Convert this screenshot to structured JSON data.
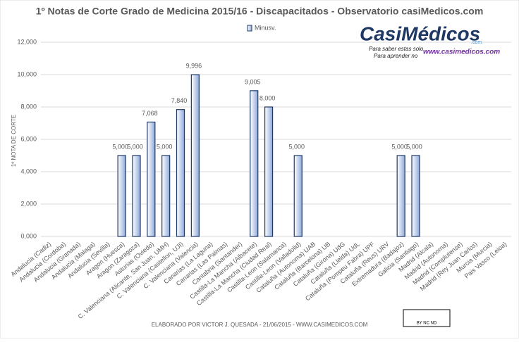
{
  "chart_data": {
    "type": "bar",
    "title": "1º Notas de Corte Grado de Medicina 2015/16 - Discapacitados - Observatorio casiMedicos.com",
    "ylabel": "1º NOTA DE CORTE",
    "footer": "ELABORADO POR VICTOR J. QUESADA - 21/06/2015 - WWW.CASIMEDICOS.COM",
    "categories": [
      "Andalucia (Cadiz)",
      "Andalucia (Cordoba)",
      "Andalucia (Granada)",
      "Andalucia (Malaga)",
      "Andalucia (Sevilla)",
      "Aragon (Huesca)",
      "Aragon (Zaragoza)",
      "Asturias (Oviedo)",
      "C. Valenciana (Alicante, San Juan, UMH)",
      "C. Valenciana (Castellon, UJI)",
      "C. Valenciana (Valencia)",
      "Canarias (La Laguna)",
      "Canarias (Las Palmas)",
      "Cantabria (Santander)",
      "Castilla-La Mancha (Albacete)",
      "Castilla-La Mancha (Ciudad Real)",
      "Castilla-Leon (Salamanca)",
      "Castilla-Leon (Valladolid)",
      "Cataluña (Autonoma) UAB",
      "Cataluña (Barcelona) UB",
      "Cataluña (Girona) UdG",
      "Cataluña (Lleida) UdL",
      "Cataluña (Pompeu Fabra) UPF",
      "Cataluña (Reus) URV",
      "Extremadura (Badajoz)",
      "Galicia (Santiago)",
      "Madrid (Alcala)",
      "Madrid (Autonoma)",
      "Madrid (Complutense)",
      "Madrid (Rey Juan Carlos)",
      "Murcia (Murcia)",
      "Pais Vasco (Leioa)"
    ],
    "series": [
      {
        "name": "Minusv.",
        "color": "#1f3864",
        "values": [
          null,
          null,
          null,
          null,
          null,
          5,
          5,
          7.068,
          5,
          7.84,
          9.996,
          null,
          null,
          null,
          9.005,
          8,
          null,
          5,
          null,
          null,
          null,
          null,
          null,
          null,
          5,
          5,
          null,
          null,
          null,
          null,
          null,
          null
        ],
        "value_labels": [
          null,
          null,
          null,
          null,
          null,
          "5,000",
          "5,000",
          "7,068",
          "5,000",
          "7,840",
          "9,996",
          null,
          null,
          null,
          "9,005",
          "8,000",
          null,
          "5,000",
          null,
          null,
          null,
          null,
          null,
          null,
          "5,000",
          "5,000",
          null,
          null,
          null,
          null,
          null,
          null
        ]
      }
    ],
    "ylim": [
      0,
      12
    ],
    "yticks": [
      {
        "value": 0,
        "label": "0,000"
      },
      {
        "value": 2,
        "label": "2,000"
      },
      {
        "value": 4,
        "label": "4,000"
      },
      {
        "value": 6,
        "label": "6,000"
      },
      {
        "value": 8,
        "label": "8,000"
      },
      {
        "value": 10,
        "label": "10,000"
      },
      {
        "value": 12,
        "label": "12,000"
      }
    ],
    "grid": true,
    "legend": "top"
  },
  "logo": {
    "name": "CasiMédicos",
    "dotcom": ".com",
    "line1": "Para saber estas solo.",
    "line2": "Para aprender no",
    "url": "www.casimedicos.com"
  },
  "license": "BY NC ND"
}
